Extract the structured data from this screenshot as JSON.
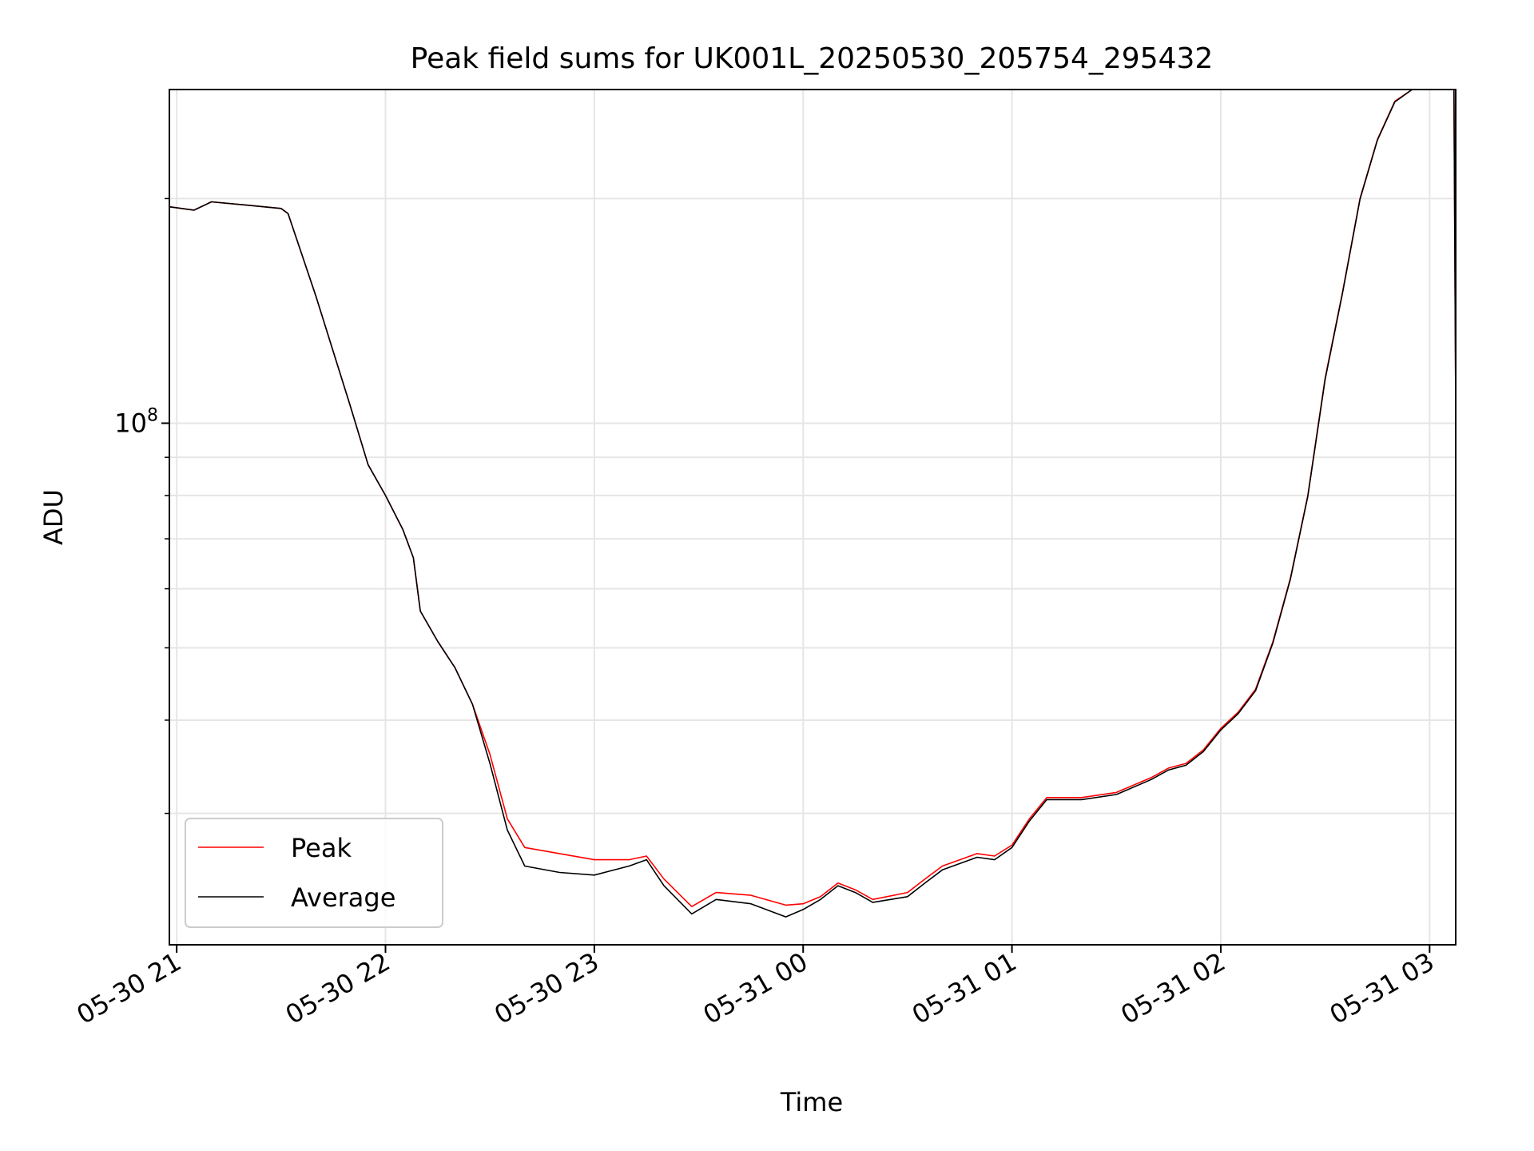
{
  "chart_data": {
    "type": "line",
    "title": "Peak field sums for UK001L_20250530_205754_295432",
    "xlabel": "Time",
    "ylabel": "ADU",
    "yscale": "log",
    "ylim": [
      20000000,
      280000000
    ],
    "xlim": [
      "2025-05-30 20:57:54",
      "2025-05-31 03:07:30"
    ],
    "grid": true,
    "legend_position": "lower-left",
    "x_ticks": [
      {
        "t": "2025-05-30 21:00",
        "label": "05-30 21"
      },
      {
        "t": "2025-05-30 22:00",
        "label": "05-30 22"
      },
      {
        "t": "2025-05-30 23:00",
        "label": "05-30 23"
      },
      {
        "t": "2025-05-31 00:00",
        "label": "05-31 00"
      },
      {
        "t": "2025-05-31 01:00",
        "label": "05-31 01"
      },
      {
        "t": "2025-05-31 02:00",
        "label": "05-31 02"
      },
      {
        "t": "2025-05-31 03:00",
        "label": "05-31 03"
      }
    ],
    "y_major_ticks": [
      {
        "v": 100000000,
        "base": "10",
        "exp": "8"
      }
    ],
    "y_minor_ticks": [
      30000000,
      40000000,
      50000000,
      60000000,
      70000000,
      80000000,
      90000000,
      200000000
    ],
    "series": [
      {
        "name": "Peak",
        "color": "#ff0000",
        "points": [
          [
            "2025-05-30 20:57:54",
            195000000
          ],
          [
            "2025-05-30 21:05",
            193000000
          ],
          [
            "2025-05-30 21:10",
            198000000
          ],
          [
            "2025-05-30 21:20",
            196000000
          ],
          [
            "2025-05-30 21:30",
            194000000
          ],
          [
            "2025-05-30 21:32",
            191000000
          ],
          [
            "2025-05-30 21:40",
            148000000
          ],
          [
            "2025-05-30 21:50",
            105000000
          ],
          [
            "2025-05-30 21:55",
            88000000
          ],
          [
            "2025-05-30 22:00",
            80000000
          ],
          [
            "2025-05-30 22:05",
            72000000
          ],
          [
            "2025-05-30 22:08",
            66000000
          ],
          [
            "2025-05-30 22:10",
            56000000
          ],
          [
            "2025-05-30 22:15",
            51000000
          ],
          [
            "2025-05-30 22:20",
            47000000
          ],
          [
            "2025-05-30 22:25",
            42000000
          ],
          [
            "2025-05-30 22:30",
            36000000
          ],
          [
            "2025-05-30 22:35",
            29500000
          ],
          [
            "2025-05-30 22:40",
            27000000
          ],
          [
            "2025-05-30 22:50",
            26500000
          ],
          [
            "2025-05-30 23:00",
            26000000
          ],
          [
            "2025-05-30 23:10",
            26000000
          ],
          [
            "2025-05-30 23:15",
            26300000
          ],
          [
            "2025-05-30 23:20",
            24500000
          ],
          [
            "2025-05-30 23:28",
            22500000
          ],
          [
            "2025-05-30 23:35",
            23500000
          ],
          [
            "2025-05-30 23:45",
            23300000
          ],
          [
            "2025-05-30 23:55",
            22600000
          ],
          [
            "2025-05-31 00:00",
            22700000
          ],
          [
            "2025-05-31 00:05",
            23200000
          ],
          [
            "2025-05-31 00:10",
            24200000
          ],
          [
            "2025-05-31 00:15",
            23700000
          ],
          [
            "2025-05-31 00:20",
            23000000
          ],
          [
            "2025-05-31 00:30",
            23500000
          ],
          [
            "2025-05-31 00:35",
            24500000
          ],
          [
            "2025-05-31 00:40",
            25500000
          ],
          [
            "2025-05-31 00:50",
            26500000
          ],
          [
            "2025-05-31 00:55",
            26300000
          ],
          [
            "2025-05-31 01:00",
            27200000
          ],
          [
            "2025-05-31 01:05",
            29500000
          ],
          [
            "2025-05-31 01:10",
            31500000
          ],
          [
            "2025-05-31 01:20",
            31500000
          ],
          [
            "2025-05-31 01:30",
            32000000
          ],
          [
            "2025-05-31 01:40",
            33500000
          ],
          [
            "2025-05-31 01:45",
            34500000
          ],
          [
            "2025-05-31 01:50",
            35000000
          ],
          [
            "2025-05-31 01:55",
            36500000
          ],
          [
            "2025-05-31 02:00",
            39000000
          ],
          [
            "2025-05-31 02:05",
            41000000
          ],
          [
            "2025-05-31 02:10",
            44000000
          ],
          [
            "2025-05-31 02:15",
            51000000
          ],
          [
            "2025-05-31 02:20",
            62000000
          ],
          [
            "2025-05-31 02:25",
            80000000
          ],
          [
            "2025-05-31 02:30",
            115000000
          ],
          [
            "2025-05-31 02:35",
            150000000
          ],
          [
            "2025-05-31 02:40",
            200000000
          ],
          [
            "2025-05-31 02:45",
            240000000
          ],
          [
            "2025-05-31 02:50",
            270000000
          ],
          [
            "2025-05-31 02:55",
            280000000
          ],
          [
            "2025-05-31 03:07",
            280000000
          ],
          [
            "2025-05-31 03:07:30",
            105000000
          ]
        ]
      },
      {
        "name": "Average",
        "color": "#000000",
        "points": [
          [
            "2025-05-30 20:57:54",
            195000000
          ],
          [
            "2025-05-30 21:05",
            193000000
          ],
          [
            "2025-05-30 21:10",
            198000000
          ],
          [
            "2025-05-30 21:20",
            196000000
          ],
          [
            "2025-05-30 21:30",
            194000000
          ],
          [
            "2025-05-30 21:32",
            191000000
          ],
          [
            "2025-05-30 21:40",
            148000000
          ],
          [
            "2025-05-30 21:50",
            105000000
          ],
          [
            "2025-05-30 21:55",
            88000000
          ],
          [
            "2025-05-30 22:00",
            80000000
          ],
          [
            "2025-05-30 22:05",
            72000000
          ],
          [
            "2025-05-30 22:08",
            66000000
          ],
          [
            "2025-05-30 22:10",
            56000000
          ],
          [
            "2025-05-30 22:15",
            51000000
          ],
          [
            "2025-05-30 22:20",
            47000000
          ],
          [
            "2025-05-30 22:25",
            42000000
          ],
          [
            "2025-05-30 22:30",
            35000000
          ],
          [
            "2025-05-30 22:35",
            28500000
          ],
          [
            "2025-05-30 22:40",
            25500000
          ],
          [
            "2025-05-30 22:50",
            25000000
          ],
          [
            "2025-05-30 23:00",
            24800000
          ],
          [
            "2025-05-30 23:10",
            25500000
          ],
          [
            "2025-05-30 23:15",
            26000000
          ],
          [
            "2025-05-30 23:20",
            24000000
          ],
          [
            "2025-05-30 23:28",
            22000000
          ],
          [
            "2025-05-30 23:35",
            23000000
          ],
          [
            "2025-05-30 23:45",
            22700000
          ],
          [
            "2025-05-30 23:55",
            21800000
          ],
          [
            "2025-05-31 00:00",
            22300000
          ],
          [
            "2025-05-31 00:05",
            23000000
          ],
          [
            "2025-05-31 00:10",
            24000000
          ],
          [
            "2025-05-31 00:15",
            23500000
          ],
          [
            "2025-05-31 00:20",
            22800000
          ],
          [
            "2025-05-31 00:30",
            23200000
          ],
          [
            "2025-05-31 00:35",
            24200000
          ],
          [
            "2025-05-31 00:40",
            25200000
          ],
          [
            "2025-05-31 00:50",
            26200000
          ],
          [
            "2025-05-31 00:55",
            26000000
          ],
          [
            "2025-05-31 01:00",
            27000000
          ],
          [
            "2025-05-31 01:05",
            29300000
          ],
          [
            "2025-05-31 01:10",
            31300000
          ],
          [
            "2025-05-31 01:20",
            31300000
          ],
          [
            "2025-05-31 01:30",
            31800000
          ],
          [
            "2025-05-31 01:40",
            33300000
          ],
          [
            "2025-05-31 01:45",
            34300000
          ],
          [
            "2025-05-31 01:50",
            34800000
          ],
          [
            "2025-05-31 01:55",
            36300000
          ],
          [
            "2025-05-31 02:00",
            38800000
          ],
          [
            "2025-05-31 02:05",
            40800000
          ],
          [
            "2025-05-31 02:10",
            43800000
          ],
          [
            "2025-05-31 02:15",
            50800000
          ],
          [
            "2025-05-31 02:20",
            61800000
          ],
          [
            "2025-05-31 02:25",
            79800000
          ],
          [
            "2025-05-31 02:30",
            114500000
          ],
          [
            "2025-05-31 02:35",
            149500000
          ],
          [
            "2025-05-31 02:40",
            199500000
          ],
          [
            "2025-05-31 02:45",
            239500000
          ],
          [
            "2025-05-31 02:50",
            269500000
          ],
          [
            "2025-05-31 02:55",
            280000000
          ],
          [
            "2025-05-31 03:07",
            280000000
          ],
          [
            "2025-05-31 03:07:30",
            105000000
          ]
        ]
      }
    ]
  }
}
